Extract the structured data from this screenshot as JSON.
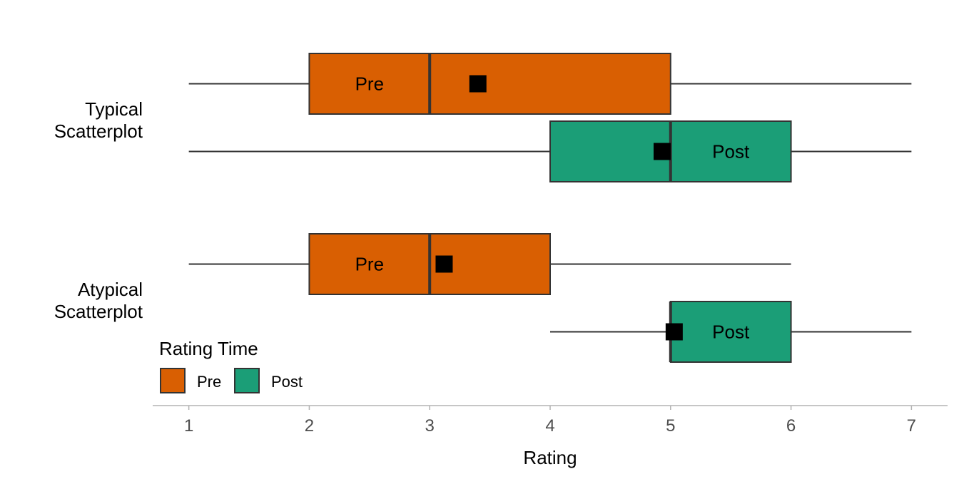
{
  "chart_data": {
    "type": "boxplot",
    "xlabel": "Rating",
    "xlim": [
      0.7,
      7.3
    ],
    "x_ticks": [
      1,
      2,
      3,
      4,
      5,
      6,
      7
    ],
    "categories": [
      {
        "label_lines": [
          "Typical",
          "Scatterplot"
        ]
      },
      {
        "label_lines": [
          "Atypical",
          "Scatterplot"
        ]
      }
    ],
    "legend": {
      "title": "Rating Time",
      "position": "bottom-left",
      "entries": [
        {
          "name": "Pre",
          "color": "#d95f02"
        },
        {
          "name": "Post",
          "color": "#1b9e77"
        }
      ]
    },
    "boxes": [
      {
        "category": 0,
        "group": "Pre",
        "label": "Pre",
        "color": "#d95f02",
        "whisker_low": 1,
        "q1": 2,
        "median": 3,
        "q3": 5,
        "whisker_high": 7,
        "mean": 3.4,
        "label_x": 2.5
      },
      {
        "category": 0,
        "group": "Post",
        "label": "Post",
        "color": "#1b9e77",
        "whisker_low": 1,
        "q1": 4,
        "median": 5,
        "q3": 6,
        "whisker_high": 7,
        "mean": 4.93,
        "label_x": 5.5
      },
      {
        "category": 1,
        "group": "Pre",
        "label": "Pre",
        "color": "#d95f02",
        "whisker_low": 1,
        "q1": 2,
        "median": 3,
        "q3": 4,
        "whisker_high": 6,
        "mean": 3.12,
        "label_x": 2.5
      },
      {
        "category": 1,
        "group": "Post",
        "label": "Post",
        "color": "#1b9e77",
        "whisker_low": 4,
        "q1": 5,
        "median": 5,
        "q3": 6,
        "whisker_high": 7,
        "mean": 5.03,
        "label_x": 5.5
      }
    ]
  }
}
